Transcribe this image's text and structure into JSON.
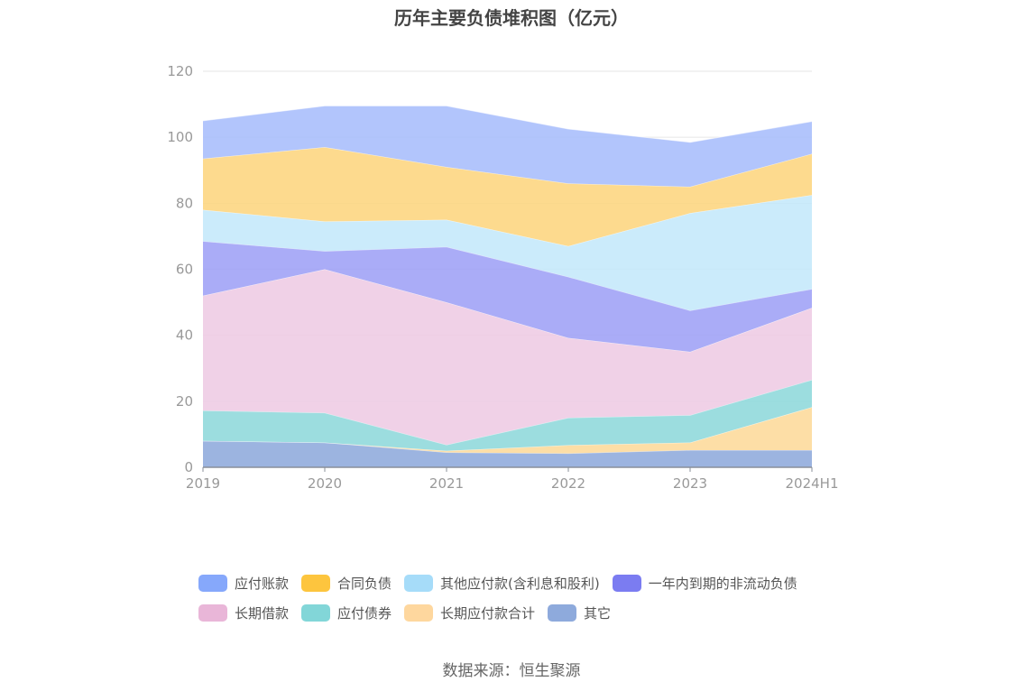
{
  "chart_data": {
    "type": "area",
    "stacked": true,
    "title": "历年主要负债堆积图（亿元）",
    "categories": [
      "2019",
      "2020",
      "2021",
      "2022",
      "2023",
      "2024H1"
    ],
    "ylim": [
      0,
      120
    ],
    "yticks": [
      0,
      20,
      40,
      60,
      80,
      100,
      120
    ],
    "grid": true,
    "legend_position": "bottom",
    "series": [
      {
        "name": "其它",
        "color": "#8eaadc",
        "values": [
          8,
          7.5,
          4.5,
          4.2,
          5.2,
          5.2
        ]
      },
      {
        "name": "长期应付款合计",
        "color": "#fdd99a",
        "values": [
          0,
          0,
          0.5,
          2.5,
          2.3,
          13
        ]
      },
      {
        "name": "应付债券",
        "color": "#8ed8db",
        "values": [
          9.2,
          9,
          1.8,
          8.3,
          8.3,
          8.3
        ]
      },
      {
        "name": "长期借款",
        "color": "#eecbe4",
        "values": [
          34.8,
          43.5,
          43.2,
          24.2,
          19.2,
          21.8
        ]
      },
      {
        "name": "一年内到期的非流动负债",
        "color": "#9ea0f6",
        "values": [
          16.5,
          5.5,
          16.8,
          18.5,
          12.5,
          5.7
        ]
      },
      {
        "name": "其他应付款(含利息和股利)",
        "color": "#c4e8fa",
        "values": [
          9.5,
          9,
          8.2,
          9.3,
          29.5,
          28.5
        ]
      },
      {
        "name": "合同负债",
        "color": "#fdd57e",
        "values": [
          15.5,
          22.5,
          16,
          19,
          8,
          12.5
        ]
      },
      {
        "name": "应付账款",
        "color": "#a7bdfc",
        "values": [
          11.5,
          12.5,
          18.5,
          16.5,
          13.5,
          9.8
        ]
      }
    ],
    "legend_order": [
      "应付账款",
      "合同负债",
      "其他应付款(含利息和股利)",
      "一年内到期的非流动负债",
      "长期借款",
      "应付债券",
      "长期应付款合计",
      "其它"
    ],
    "legend_colors": [
      "#86a8fb",
      "#fdc53e",
      "#a6dcf9",
      "#7b7cf1",
      "#e9b6d8",
      "#82d6d8",
      "#fed79e",
      "#8eaadc"
    ]
  },
  "source": "数据来源：恒生聚源"
}
